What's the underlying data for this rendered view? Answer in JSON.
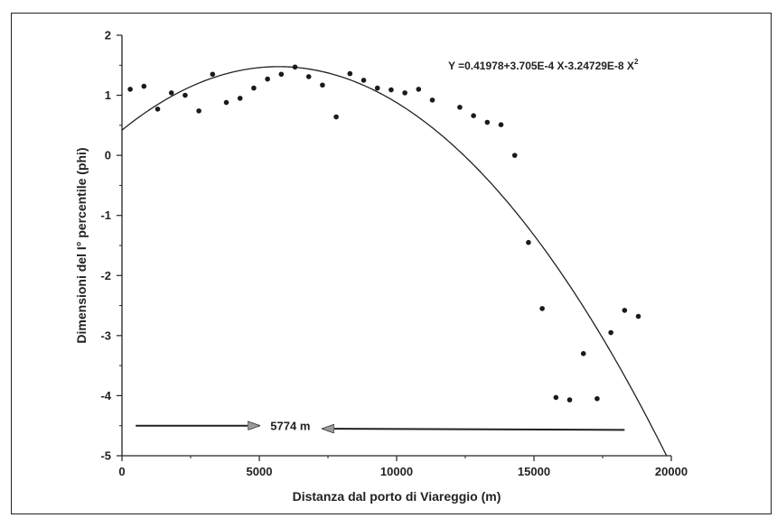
{
  "chart_data": {
    "type": "scatter",
    "title": "",
    "xlabel": "Distanza dal porto di Viareggio (m)",
    "ylabel": "Dimensioni del I° percentile (phi)",
    "xlim": [
      0,
      20000
    ],
    "ylim": [
      -5,
      2
    ],
    "xticks": [
      0,
      5000,
      10000,
      15000,
      20000
    ],
    "yticks": [
      2,
      1,
      0,
      -1,
      -2,
      -3,
      -4,
      -5
    ],
    "grid": false,
    "points": [
      [
        300,
        1.1
      ],
      [
        800,
        1.15
      ],
      [
        1300,
        0.77
      ],
      [
        1800,
        1.04
      ],
      [
        2300,
        1.0
      ],
      [
        2800,
        0.74
      ],
      [
        3300,
        1.35
      ],
      [
        3800,
        0.88
      ],
      [
        4300,
        0.95
      ],
      [
        4800,
        1.12
      ],
      [
        5300,
        1.27
      ],
      [
        5800,
        1.35
      ],
      [
        6300,
        1.47
      ],
      [
        6800,
        1.31
      ],
      [
        7300,
        1.17
      ],
      [
        7800,
        0.64
      ],
      [
        8300,
        1.36
      ],
      [
        8800,
        1.25
      ],
      [
        9300,
        1.12
      ],
      [
        9800,
        1.09
      ],
      [
        10300,
        1.04
      ],
      [
        10800,
        1.1
      ],
      [
        11300,
        0.92
      ],
      [
        12300,
        0.8
      ],
      [
        12800,
        0.66
      ],
      [
        13300,
        0.55
      ],
      [
        13800,
        0.51
      ],
      [
        14300,
        0.0
      ],
      [
        14800,
        -1.45
      ],
      [
        15300,
        -2.55
      ],
      [
        15800,
        -4.03
      ],
      [
        16300,
        -4.07
      ],
      [
        16800,
        -3.3
      ],
      [
        17300,
        -4.05
      ],
      [
        17800,
        -2.95
      ],
      [
        18300,
        -2.58
      ],
      [
        18800,
        -2.68
      ]
    ],
    "fit": {
      "label": "Y =0.41978+3.705E-4 X-3.24729E-8 X",
      "superscript": "2",
      "a": 0.41978,
      "b": 0.0003705,
      "c": -3.24729e-08
    },
    "annotation": {
      "text": "5774 m",
      "arrow_left": {
        "from": [
          500,
          -4.5
        ],
        "to": [
          5000,
          -4.5
        ]
      },
      "arrow_right": {
        "from": [
          18300,
          -4.57
        ],
        "to": [
          7300,
          -4.55
        ]
      }
    }
  }
}
